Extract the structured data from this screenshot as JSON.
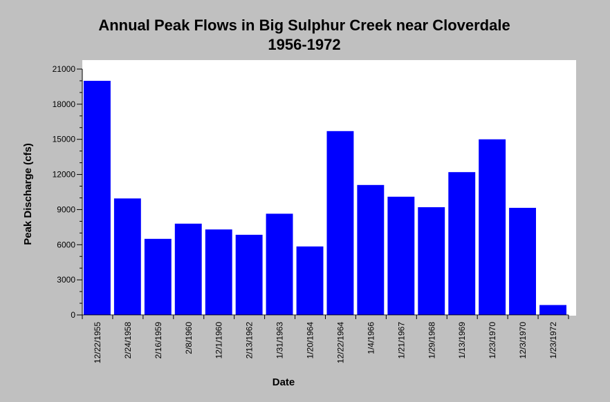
{
  "chart_data": {
    "type": "bar",
    "title_line1": "Annual Peak Flows in Big Sulphur Creek near Cloverdale",
    "title_line2": "1956-1972",
    "xlabel": "Date",
    "ylabel": "Peak Discharge (cfs)",
    "ylim": [
      0,
      21000
    ],
    "yticks": [
      "0",
      "3000",
      "6000",
      "9000",
      "12000",
      "15000",
      "18000",
      "21000"
    ],
    "grid": false,
    "legend": "none",
    "bar_color": "#0000ff",
    "plot_background": "#ffffff",
    "page_background": "#c0c0c0",
    "categories": [
      "12/22/1955",
      "2/24/1958",
      "2/16/1959",
      "2/8/1960",
      "12/1/1960",
      "2/13/1962",
      "1/31/1963",
      "1/20/1964",
      "12/22/1964",
      "1/4/1966",
      "1/21/1967",
      "1/29/1968",
      "1/13/1969",
      "1/23/1970",
      "12/3/1970",
      "1/23/1972"
    ],
    "values": [
      20000,
      9950,
      6500,
      7800,
      7300,
      6850,
      8650,
      5850,
      15700,
      11100,
      10100,
      9200,
      12200,
      15000,
      9150,
      850
    ]
  }
}
